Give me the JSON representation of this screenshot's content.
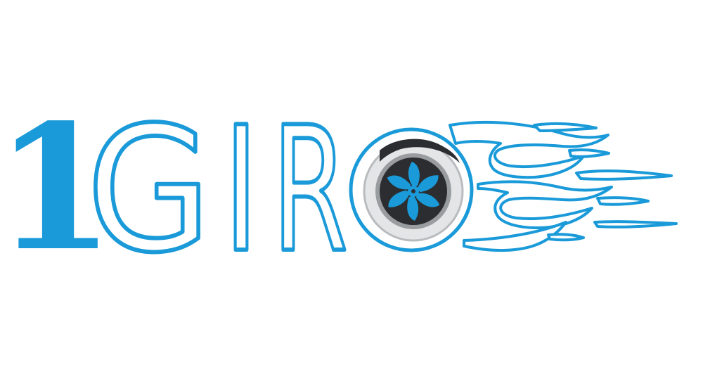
{
  "logo": {
    "wordmark": "1GIRO",
    "digit": "1",
    "letters": [
      "G",
      "I",
      "R"
    ],
    "o_letter": "O",
    "icon": "turbo-fan-icon",
    "flames_icon": "speed-flames-icon"
  },
  "colors": {
    "brand_blue": "#1a9ad9",
    "fan_dark": "#2b2d30",
    "ring_gray": "#b9bcbf",
    "ring_light": "#e4e5e6",
    "background": "#ffffff"
  }
}
